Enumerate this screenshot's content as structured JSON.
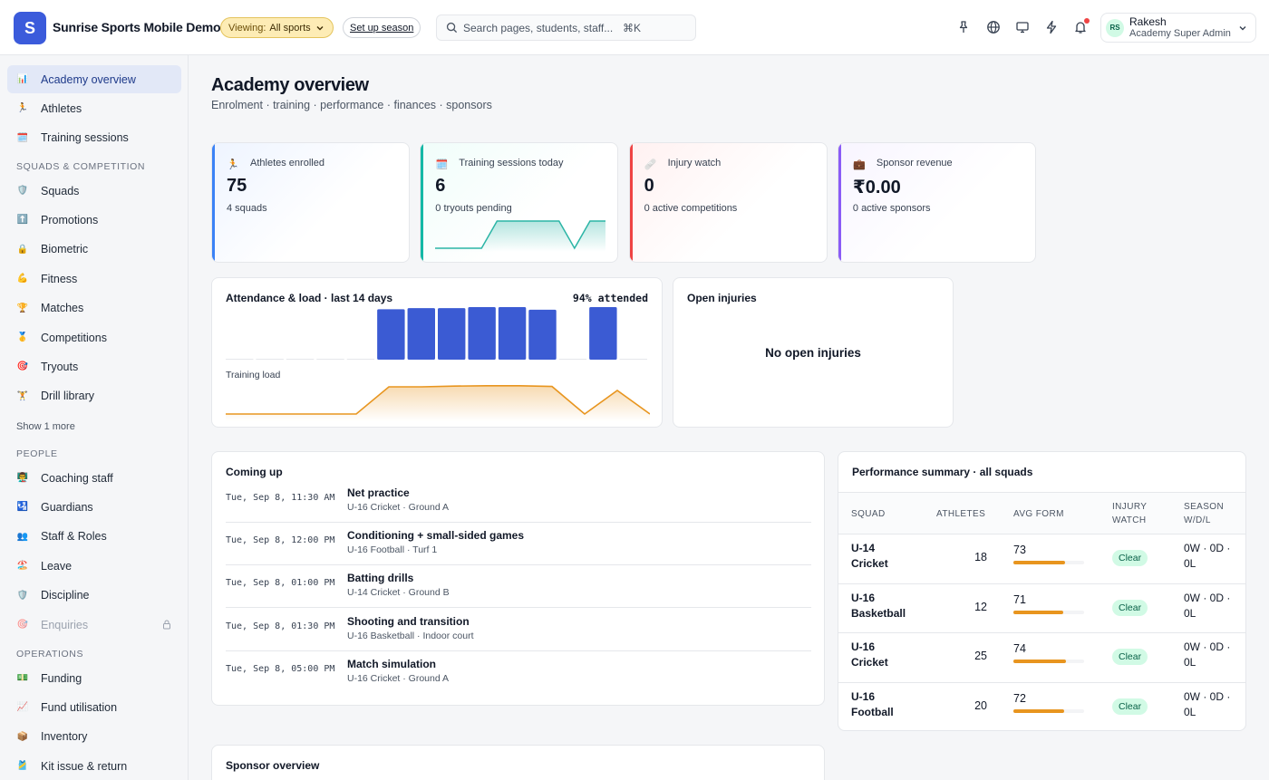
{
  "app": {
    "logo_letter": "S",
    "title": "Sunrise Sports Mobile Demo",
    "viewing_label": "Viewing:",
    "viewing_value": "All sports",
    "setup_label": "Set up season",
    "search_placeholder": "Search pages, students, staff...",
    "search_shortcut": "⌘K"
  },
  "user": {
    "initials": "RS",
    "name": "Rakesh",
    "role": "Academy Super Admin"
  },
  "sidebar": {
    "top_items": [
      {
        "label": "Academy overview",
        "icon": "📊",
        "active": true
      },
      {
        "label": "Athletes",
        "icon": "🏃"
      },
      {
        "label": "Training sessions",
        "icon": "🗓️"
      }
    ],
    "section_squads": "SQUADS & COMPETITION",
    "squad_items": [
      {
        "label": "Squads",
        "icon": "🛡️"
      },
      {
        "label": "Promotions",
        "icon": "⬆️"
      },
      {
        "label": "Biometric",
        "icon": "🔒"
      },
      {
        "label": "Fitness",
        "icon": "💪"
      },
      {
        "label": "Matches",
        "icon": "🏆"
      },
      {
        "label": "Competitions",
        "icon": "🥇"
      },
      {
        "label": "Tryouts",
        "icon": "🎯"
      },
      {
        "label": "Drill library",
        "icon": "🏋️"
      }
    ],
    "show_more": "Show 1 more",
    "section_people": "PEOPLE",
    "people_items": [
      {
        "label": "Coaching staff",
        "icon": "👨‍🏫"
      },
      {
        "label": "Guardians",
        "icon": "🛂"
      },
      {
        "label": "Staff & Roles",
        "icon": "👥"
      },
      {
        "label": "Leave",
        "icon": "🏖️"
      },
      {
        "label": "Discipline",
        "icon": "🛡️"
      },
      {
        "label": "Enquiries",
        "icon": "🎯",
        "disabled": true
      }
    ],
    "section_operations": "OPERATIONS",
    "operations_items": [
      {
        "label": "Funding",
        "icon": "💵"
      },
      {
        "label": "Fund utilisation",
        "icon": "📈"
      },
      {
        "label": "Inventory",
        "icon": "📦"
      },
      {
        "label": "Kit issue & return",
        "icon": "🎽"
      }
    ]
  },
  "page": {
    "title": "Academy overview",
    "subtitle": "Enrolment · training · performance · finances · sponsors"
  },
  "kpis": [
    {
      "label": "Athletes enrolled",
      "value": "75",
      "sub": "4 squads",
      "accent": "#3b82f6",
      "tint": "#eef4ff",
      "icon": "🏃"
    },
    {
      "label": "Training sessions today",
      "value": "6",
      "sub": "0 tryouts pending",
      "accent": "#14b8a6",
      "tint": "#f0fdfa",
      "icon": "🗓️"
    },
    {
      "label": "Injury watch",
      "value": "0",
      "sub": "0 active competitions",
      "accent": "#ef4444",
      "tint": "#fff1f1",
      "icon": "🩹"
    },
    {
      "label": "Sponsor revenue",
      "value": "₹0.00",
      "sub": "0 active sponsors",
      "accent": "#8b5cf6",
      "tint": "#f8f5ff",
      "icon": "💼"
    }
  ],
  "attendance": {
    "title": "Attendance & load · last 14 days",
    "summary": "94% attended",
    "load_label": "Training load"
  },
  "injuries": {
    "title": "Open injuries",
    "empty": "No open injuries"
  },
  "coming_up": {
    "title": "Coming up",
    "events": [
      {
        "time": "Tue, Sep 8, 11:30 AM",
        "title": "Net practice",
        "meta": "U-16 Cricket · Ground A"
      },
      {
        "time": "Tue, Sep 8, 12:00 PM",
        "title": "Conditioning + small-sided games",
        "meta": "U-16 Football · Turf 1"
      },
      {
        "time": "Tue, Sep 8, 01:00 PM",
        "title": "Batting drills",
        "meta": "U-14 Cricket · Ground B"
      },
      {
        "time": "Tue, Sep 8, 01:30 PM",
        "title": "Shooting and transition",
        "meta": "U-16 Basketball · Indoor court"
      },
      {
        "time": "Tue, Sep 8, 05:00 PM",
        "title": "Match simulation",
        "meta": "U-16 Cricket · Ground A"
      }
    ]
  },
  "performance": {
    "title": "Performance summary · all squads",
    "headers": {
      "squad": "SQUAD",
      "athletes": "ATHLETES",
      "form": "AVG FORM",
      "injury_1": "INJURY",
      "injury_2": "WATCH",
      "season_1": "SEASON",
      "season_2": "W/D/L"
    },
    "rows": [
      {
        "squad_1": "U-14",
        "squad_2": "Cricket",
        "athletes": "18",
        "form": "73",
        "status": "Clear",
        "season_1": "0W · 0D ·",
        "season_2": "0L"
      },
      {
        "squad_1": "U-16",
        "squad_2": "Basketball",
        "athletes": "12",
        "form": "71",
        "status": "Clear",
        "season_1": "0W · 0D ·",
        "season_2": "0L"
      },
      {
        "squad_1": "U-16",
        "squad_2": "Cricket",
        "athletes": "25",
        "form": "74",
        "status": "Clear",
        "season_1": "0W · 0D ·",
        "season_2": "0L"
      },
      {
        "squad_1": "U-16",
        "squad_2": "Football",
        "athletes": "20",
        "form": "72",
        "status": "Clear",
        "season_1": "0W · 0D ·",
        "season_2": "0L"
      }
    ]
  },
  "sponsor": {
    "title": "Sponsor overview"
  },
  "chart_data": [
    {
      "type": "bar",
      "title": "Attendance & load · last 14 days",
      "categories": [
        "1",
        "2",
        "3",
        "4",
        "5",
        "6",
        "7",
        "8",
        "9",
        "10",
        "11",
        "12",
        "13",
        "14"
      ],
      "values": [
        0,
        0,
        0,
        0,
        0,
        96,
        98,
        98,
        100,
        100,
        95,
        0,
        100,
        0
      ],
      "ylim": [
        0,
        100
      ],
      "color": "#3b5bd3"
    },
    {
      "type": "area",
      "title": "Training load",
      "x": [
        "1",
        "2",
        "3",
        "4",
        "5",
        "6",
        "7",
        "8",
        "9",
        "10",
        "11",
        "12",
        "13",
        "14"
      ],
      "values": [
        10,
        10,
        10,
        10,
        10,
        85,
        85,
        87,
        88,
        88,
        86,
        10,
        75,
        10
      ],
      "ylim": [
        0,
        100
      ],
      "color": "#e8951f"
    },
    {
      "type": "area",
      "title": "",
      "values": [
        0,
        0,
        0,
        0,
        1,
        1,
        1,
        1,
        1,
        0,
        1,
        1
      ],
      "ylim": [
        0,
        1
      ],
      "color": "#2cb5a6"
    }
  ]
}
